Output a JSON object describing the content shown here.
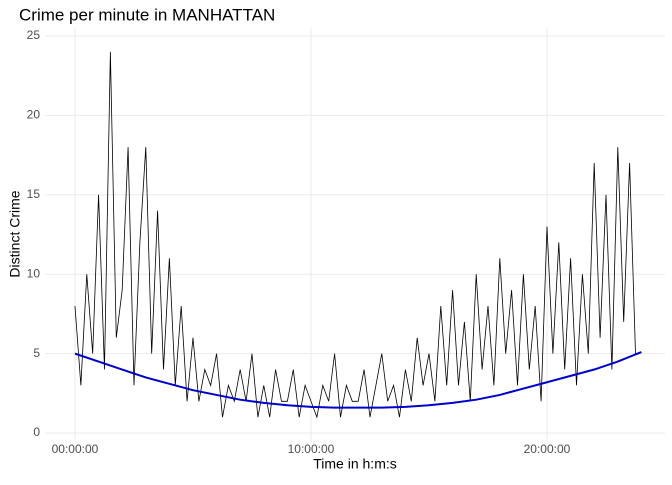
{
  "chart_data": {
    "type": "line",
    "title": "Crime per minute in MANHATTAN",
    "x_label": "Time in h:m:s",
    "y_label": "Distinct Crime",
    "x": [
      0,
      0.25,
      0.5,
      0.75,
      1,
      1.25,
      1.5,
      1.75,
      2,
      2.25,
      2.5,
      2.75,
      3,
      3.25,
      3.5,
      3.75,
      4,
      4.25,
      4.5,
      4.75,
      5,
      5.25,
      5.5,
      5.75,
      6,
      6.25,
      6.5,
      6.75,
      7,
      7.25,
      7.5,
      7.75,
      8,
      8.25,
      8.5,
      8.75,
      9,
      9.25,
      9.5,
      9.75,
      10,
      10.25,
      10.5,
      10.75,
      11,
      11.25,
      11.5,
      11.75,
      12,
      12.25,
      12.5,
      12.75,
      13,
      13.25,
      13.5,
      13.75,
      14,
      14.25,
      14.5,
      14.75,
      15,
      15.25,
      15.5,
      15.75,
      16,
      16.25,
      16.5,
      16.75,
      17,
      17.25,
      17.5,
      17.75,
      18,
      18.25,
      18.5,
      18.75,
      19,
      19.25,
      19.5,
      19.75,
      20,
      20.25,
      20.5,
      20.75,
      21,
      21.25,
      21.5,
      21.75,
      22,
      22.25,
      22.5,
      22.75,
      23,
      23.25,
      23.5,
      23.75
    ],
    "series": [
      {
        "color": "#000000",
        "values": [
          8,
          3,
          10,
          5,
          15,
          4,
          24,
          6,
          9,
          18,
          3,
          12,
          18,
          5,
          14,
          4,
          11,
          3,
          8,
          2,
          6,
          2,
          4,
          3,
          5,
          1,
          3,
          2,
          4,
          2,
          5,
          1,
          3,
          1,
          4,
          2,
          2,
          4,
          1,
          3,
          2,
          1,
          3,
          2,
          5,
          1,
          3,
          2,
          2,
          4,
          1,
          3,
          5,
          2,
          3,
          1,
          4,
          2,
          6,
          3,
          5,
          2,
          8,
          3,
          9,
          3,
          7,
          2,
          10,
          4,
          8,
          3,
          11,
          5,
          9,
          3,
          10,
          4,
          8,
          2,
          13,
          5,
          12,
          4,
          11,
          3,
          10,
          5,
          17,
          6,
          15,
          4,
          18,
          7,
          17,
          5
        ]
      },
      {
        "color": "#0000cc",
        "x": [
          0,
          1,
          2,
          3,
          4,
          5,
          6,
          7,
          8,
          9,
          10,
          11,
          12,
          13,
          14,
          15,
          16,
          17,
          18,
          19,
          20,
          21,
          22,
          23,
          24
        ],
        "values": [
          5.0,
          4.5,
          4.0,
          3.5,
          3.1,
          2.7,
          2.4,
          2.1,
          1.9,
          1.75,
          1.65,
          1.6,
          1.6,
          1.6,
          1.65,
          1.75,
          1.9,
          2.1,
          2.4,
          2.8,
          3.2,
          3.6,
          4.0,
          4.5,
          5.1
        ]
      }
    ],
    "xlim": [
      -1.27,
      25.0
    ],
    "ylim": [
      -0.5,
      25.5
    ],
    "xticks": [
      {
        "value": 0,
        "label": "00:00:00"
      },
      {
        "value": 10,
        "label": "10:00:00"
      },
      {
        "value": 20,
        "label": "20:00:00"
      }
    ],
    "yticks": [
      0,
      5,
      10,
      15,
      20,
      25
    ],
    "grid": true
  }
}
